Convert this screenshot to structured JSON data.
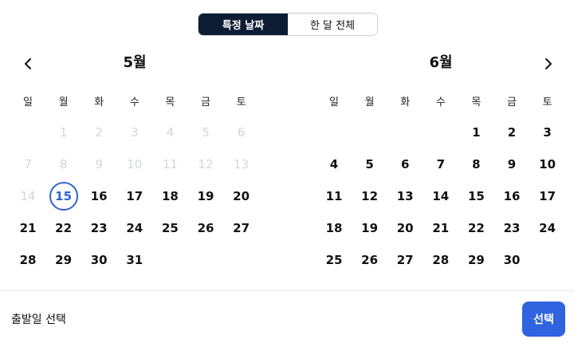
{
  "toggle": {
    "specific_date": "특정 날짜",
    "whole_month": "한 달 전체",
    "active": "specific_date"
  },
  "weekdays": [
    "일",
    "월",
    "화",
    "수",
    "목",
    "금",
    "토"
  ],
  "months": [
    {
      "title": "5월",
      "weeks": [
        [
          null,
          {
            "d": "1",
            "state": "disabled"
          },
          {
            "d": "2",
            "state": "disabled"
          },
          {
            "d": "3",
            "state": "disabled"
          },
          {
            "d": "4",
            "state": "disabled"
          },
          {
            "d": "5",
            "state": "disabled"
          },
          {
            "d": "6",
            "state": "disabled"
          }
        ],
        [
          {
            "d": "7",
            "state": "disabled"
          },
          {
            "d": "8",
            "state": "disabled"
          },
          {
            "d": "9",
            "state": "disabled"
          },
          {
            "d": "10",
            "state": "disabled"
          },
          {
            "d": "11",
            "state": "disabled"
          },
          {
            "d": "12",
            "state": "disabled"
          },
          {
            "d": "13",
            "state": "disabled"
          }
        ],
        [
          {
            "d": "14",
            "state": "disabled"
          },
          {
            "d": "15",
            "state": "selected"
          },
          {
            "d": "16"
          },
          {
            "d": "17"
          },
          {
            "d": "18"
          },
          {
            "d": "19"
          },
          {
            "d": "20"
          }
        ],
        [
          {
            "d": "21"
          },
          {
            "d": "22"
          },
          {
            "d": "23"
          },
          {
            "d": "24"
          },
          {
            "d": "25"
          },
          {
            "d": "26"
          },
          {
            "d": "27"
          }
        ],
        [
          {
            "d": "28"
          },
          {
            "d": "29"
          },
          {
            "d": "30"
          },
          {
            "d": "31"
          },
          null,
          null,
          null
        ]
      ]
    },
    {
      "title": "6월",
      "weeks": [
        [
          null,
          null,
          null,
          null,
          {
            "d": "1"
          },
          {
            "d": "2"
          },
          {
            "d": "3"
          }
        ],
        [
          {
            "d": "4"
          },
          {
            "d": "5"
          },
          {
            "d": "6"
          },
          {
            "d": "7"
          },
          {
            "d": "8"
          },
          {
            "d": "9"
          },
          {
            "d": "10"
          }
        ],
        [
          {
            "d": "11"
          },
          {
            "d": "12"
          },
          {
            "d": "13"
          },
          {
            "d": "14"
          },
          {
            "d": "15"
          },
          {
            "d": "16"
          },
          {
            "d": "17"
          }
        ],
        [
          {
            "d": "18"
          },
          {
            "d": "19"
          },
          {
            "d": "20"
          },
          {
            "d": "21"
          },
          {
            "d": "22"
          },
          {
            "d": "23"
          },
          {
            "d": "24"
          }
        ],
        [
          {
            "d": "25"
          },
          {
            "d": "26"
          },
          {
            "d": "27"
          },
          {
            "d": "28"
          },
          {
            "d": "29"
          },
          {
            "d": "30"
          },
          null
        ]
      ]
    }
  ],
  "footer": {
    "label": "출발일 선택",
    "select_button": "선택"
  },
  "icons": {
    "prev": "chevron-left-icon",
    "next": "chevron-right-icon"
  },
  "colors": {
    "toggle_active_bg": "#0d1b33",
    "selected_ring": "#2f63d6",
    "primary_button": "#2f63e0",
    "disabled_text": "#d4d6da"
  }
}
